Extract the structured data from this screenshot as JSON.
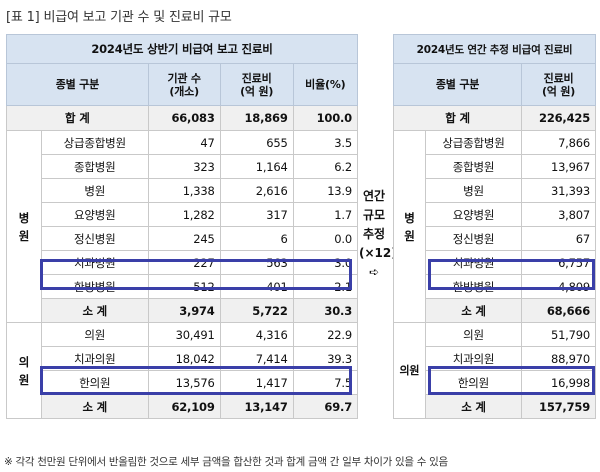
{
  "caption": "[표 1] 비급여 보고 기관 수 및 진료비 규모",
  "left_table": {
    "title": "2024년도 상반기 비급여 보고 진료비",
    "headers": {
      "type": "종별 구분",
      "count_line1": "기관 수",
      "count_line2": "(개소)",
      "cost_line1": "진료비",
      "cost_line2": "(억 원)",
      "ratio": "비율(%)"
    },
    "total": {
      "label": "합  계",
      "count": "66,083",
      "cost": "18,869",
      "ratio": "100.0"
    },
    "hospital_group": {
      "char1": "병",
      "char2": "원"
    },
    "hospital_rows": [
      {
        "name": "상급종합병원",
        "count": "47",
        "cost": "655",
        "ratio": "3.5"
      },
      {
        "name": "종합병원",
        "count": "323",
        "cost": "1,164",
        "ratio": "6.2"
      },
      {
        "name": "병원",
        "count": "1,338",
        "cost": "2,616",
        "ratio": "13.9"
      },
      {
        "name": "요양병원",
        "count": "1,282",
        "cost": "317",
        "ratio": "1.7"
      },
      {
        "name": "정신병원",
        "count": "245",
        "cost": "6",
        "ratio": "0.0"
      },
      {
        "name": "치과병원",
        "count": "227",
        "cost": "563",
        "ratio": "3.0"
      },
      {
        "name": "한방병원",
        "count": "512",
        "cost": "401",
        "ratio": "2.1"
      }
    ],
    "hospital_subtotal": {
      "label": "소  계",
      "count": "3,974",
      "cost": "5,722",
      "ratio": "30.3"
    },
    "clinic_group": {
      "char1": "의",
      "char2": "원"
    },
    "clinic_rows": [
      {
        "name": "의원",
        "count": "30,491",
        "cost": "4,316",
        "ratio": "22.9"
      },
      {
        "name": "치과의원",
        "count": "18,042",
        "cost": "7,414",
        "ratio": "39.3"
      },
      {
        "name": "한의원",
        "count": "13,576",
        "cost": "1,417",
        "ratio": "7.5"
      }
    ],
    "clinic_subtotal": {
      "label": "소  계",
      "count": "62,109",
      "cost": "13,147",
      "ratio": "69.7"
    }
  },
  "middle": {
    "line1": "연간",
    "line2": "규모",
    "line3": "추정",
    "line4": "(×12)",
    "arrow": "➪"
  },
  "right_table": {
    "title": "2024년도 연간 추정 비급여 진료비",
    "headers": {
      "type": "종별 구분",
      "cost_line1": "진료비",
      "cost_line2": "(억 원)"
    },
    "total": {
      "label": "합  계",
      "cost": "226,425"
    },
    "hospital_group": {
      "char1": "병",
      "char2": "원"
    },
    "hospital_rows": [
      {
        "name": "상급종합병원",
        "cost": "7,866"
      },
      {
        "name": "종합병원",
        "cost": "13,967"
      },
      {
        "name": "병원",
        "cost": "31,393"
      },
      {
        "name": "요양병원",
        "cost": "3,807"
      },
      {
        "name": "정신병원",
        "cost": "67"
      },
      {
        "name": "치과병원",
        "cost": "6,757"
      },
      {
        "name": "한방병원",
        "cost": "4,809"
      }
    ],
    "hospital_subtotal": {
      "label": "소  계",
      "cost": "68,666"
    },
    "clinic_group": {
      "label": "의원"
    },
    "clinic_rows": [
      {
        "name": "의원",
        "cost": "51,790"
      },
      {
        "name": "치과의원",
        "cost": "88,970"
      },
      {
        "name": "한의원",
        "cost": "16,998"
      }
    ],
    "clinic_subtotal": {
      "label": "소  계",
      "cost": "157,759"
    }
  },
  "footnote": "※ 각각 천만원 단위에서 반올림한 것으로 세부 금액을 합산한 것과 합계 금액 간 일부 차이가 있을 수 있음",
  "highlight_color": "#3a3fa8",
  "header_color": "#d7e3f1"
}
